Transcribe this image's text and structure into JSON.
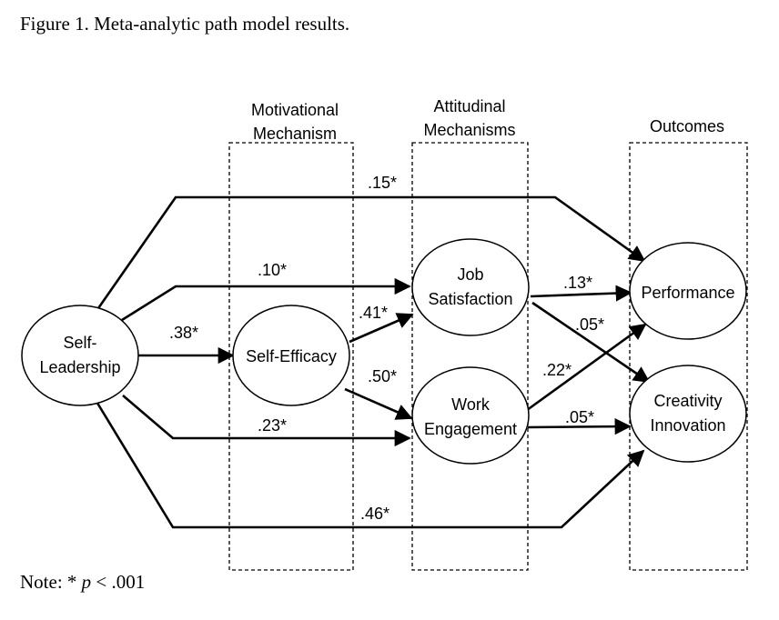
{
  "figure": {
    "title": "Figure 1. Meta-analytic path model results.",
    "note_prefix": "Note: * ",
    "note_p": "p",
    "note_suffix": " < .001"
  },
  "groups": {
    "motivational_line1": "Motivational",
    "motivational_line2": "Mechanism",
    "attitudinal_line1": "Attitudinal",
    "attitudinal_line2": "Mechanisms",
    "outcomes": "Outcomes"
  },
  "nodes": {
    "self_leadership_line1": "Self-",
    "self_leadership_line2": "Leadership",
    "self_efficacy": "Self-Efficacy",
    "job_satisfaction_line1": "Job",
    "job_satisfaction_line2": "Satisfaction",
    "work_engagement_line1": "Work",
    "work_engagement_line2": "Engagement",
    "performance": "Performance",
    "creativity_line1": "Creativity",
    "creativity_line2": "Innovation"
  },
  "paths": {
    "sl_performance": ".15*",
    "sl_job_satisfaction": ".10*",
    "sl_self_efficacy": ".38*",
    "se_job_satisfaction": ".41*",
    "se_work_engagement": ".50*",
    "sl_work_engagement": ".23*",
    "sl_creativity": ".46*",
    "js_performance": ".13*",
    "js_creativity": ".05*",
    "we_performance": ".22*",
    "we_creativity": ".05*"
  }
}
